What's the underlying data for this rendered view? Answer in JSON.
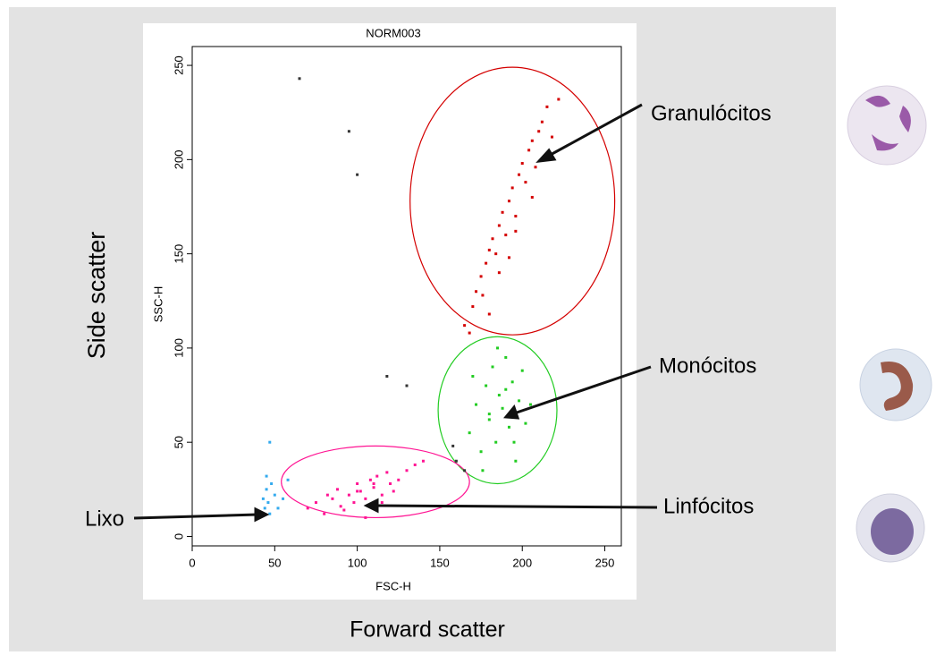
{
  "chart_data": {
    "type": "scatter",
    "title": "NORM003",
    "x_label": "FSC-H",
    "y_label": "SSC-H",
    "x_title": "Forward scatter",
    "y_title": "Side scatter",
    "xlim": [
      0,
      260
    ],
    "ylim": [
      -5,
      260
    ],
    "xticks": [
      0,
      50,
      100,
      150,
      200,
      250
    ],
    "yticks": [
      0,
      50,
      100,
      150,
      200,
      250
    ],
    "series": [
      {
        "name": "Granulócitos",
        "color": "#d40000",
        "x": [
          165,
          170,
          172,
          175,
          178,
          180,
          182,
          184,
          186,
          188,
          190,
          192,
          194,
          196,
          198,
          200,
          202,
          204,
          206,
          208,
          210,
          212,
          215,
          218,
          222,
          176,
          186,
          196,
          206,
          168,
          180,
          192
        ],
        "y": [
          112,
          122,
          130,
          138,
          145,
          152,
          158,
          150,
          165,
          172,
          160,
          178,
          185,
          170,
          192,
          198,
          188,
          205,
          210,
          196,
          215,
          220,
          228,
          212,
          232,
          128,
          140,
          162,
          180,
          108,
          118,
          148
        ],
        "gate": {
          "cx": 194,
          "cy": 178,
          "rx": 62,
          "ry": 71
        }
      },
      {
        "name": "Monócitos",
        "color": "#22cc22",
        "x": [
          168,
          172,
          175,
          178,
          180,
          182,
          184,
          186,
          188,
          190,
          192,
          194,
          196,
          198,
          200,
          202,
          176,
          185,
          195,
          190,
          180,
          170,
          205
        ],
        "y": [
          55,
          70,
          45,
          80,
          62,
          90,
          50,
          75,
          68,
          95,
          58,
          82,
          40,
          72,
          88,
          60,
          35,
          100,
          50,
          78,
          65,
          85,
          70
        ],
        "gate": {
          "cx": 185,
          "cy": 67,
          "rx": 36,
          "ry": 39
        }
      },
      {
        "name": "Linfócitos",
        "color": "#ff1493",
        "x": [
          70,
          75,
          80,
          85,
          88,
          90,
          95,
          98,
          100,
          102,
          105,
          108,
          110,
          112,
          115,
          118,
          120,
          125,
          130,
          135,
          92,
          105,
          115,
          82,
          140,
          100,
          110,
          122
        ],
        "y": [
          15,
          18,
          12,
          20,
          25,
          16,
          22,
          18,
          28,
          24,
          20,
          30,
          26,
          32,
          22,
          34,
          28,
          30,
          35,
          38,
          14,
          10,
          18,
          22,
          40,
          24,
          28,
          24
        ],
        "gate": {
          "cx": 111,
          "cy": 29,
          "rx": 57,
          "ry": 19
        }
      },
      {
        "name": "Lixo",
        "color": "#33aaee",
        "x": [
          43,
          44,
          45,
          46,
          47,
          48,
          50,
          52,
          55,
          47,
          58,
          45
        ],
        "y": [
          20,
          15,
          25,
          18,
          12,
          28,
          22,
          15,
          20,
          50,
          30,
          32
        ]
      },
      {
        "color": "#333333",
        "x": [
          65,
          95,
          100,
          118,
          130,
          160,
          165,
          158
        ],
        "y": [
          243,
          215,
          192,
          85,
          80,
          40,
          35,
          48
        ]
      }
    ]
  }
}
